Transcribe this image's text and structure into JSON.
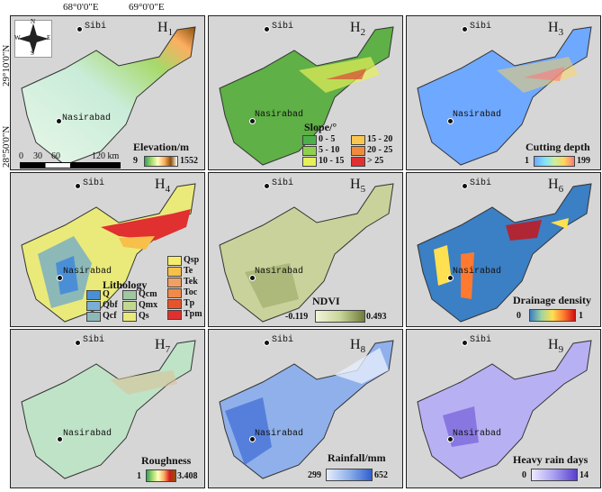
{
  "coords": {
    "top": [
      "68°0'0\"E",
      "69°0'0\"E"
    ],
    "left": [
      "29°10'0\"N",
      "28°50'0\"N"
    ]
  },
  "compass": {
    "n": "N",
    "s": "S",
    "e": "E",
    "w": "W"
  },
  "cities": {
    "sibi": "Sibi",
    "nasirabad": "Nasirabad"
  },
  "panels": [
    {
      "id": "H",
      "sub": "1"
    },
    {
      "id": "H",
      "sub": "2"
    },
    {
      "id": "H",
      "sub": "3"
    },
    {
      "id": "H",
      "sub": "4"
    },
    {
      "id": "H",
      "sub": "5"
    },
    {
      "id": "H",
      "sub": "6"
    },
    {
      "id": "H",
      "sub": "7"
    },
    {
      "id": "H",
      "sub": "8"
    },
    {
      "id": "H",
      "sub": "9"
    }
  ],
  "scale": {
    "labels": [
      "0",
      "30",
      "60",
      "120 km"
    ]
  },
  "legends": {
    "elevation": {
      "title": "Elevation/m",
      "min": "9",
      "max": "1552",
      "colors": [
        "#2ca25f",
        "#a6d96a",
        "#ffffbf",
        "#fdae61",
        "#8c510a",
        "#ffffff"
      ]
    },
    "slope": {
      "title": "Slope/°",
      "classes": [
        {
          "label": "0 - 5",
          "color": "#4daf4a"
        },
        {
          "label": "5 - 10",
          "color": "#8fd14f"
        },
        {
          "label": "10 - 15",
          "color": "#e6f05a"
        },
        {
          "label": "15 - 20",
          "color": "#f9c74f"
        },
        {
          "label": "20 - 25",
          "color": "#f08a3c"
        },
        {
          "label": "> 25",
          "color": "#e03131"
        }
      ]
    },
    "cutting": {
      "title": "Cutting depth",
      "min": "1",
      "max": "199",
      "colors": [
        "#6fa8ff",
        "#7ee0ff",
        "#c8f0a0",
        "#ffd45a",
        "#ff7a7a"
      ]
    },
    "lithology": {
      "title": "Lithology",
      "classes": [
        {
          "label": "Qsp",
          "color": "#f5ec6e"
        },
        {
          "label": "Te",
          "color": "#f6c04a"
        },
        {
          "label": "Tek",
          "color": "#f0a064"
        },
        {
          "label": "Toc",
          "color": "#f08a4a"
        },
        {
          "label": "Tp",
          "color": "#e8542a"
        },
        {
          "label": "Tpm",
          "color": "#e03030"
        },
        {
          "label": "Q",
          "color": "#4a8fd6"
        },
        {
          "label": "Qbf",
          "color": "#7aaed8"
        },
        {
          "label": "Qcf",
          "color": "#8db8b8"
        },
        {
          "label": "Qcm",
          "color": "#9fc7a0"
        },
        {
          "label": "Qmx",
          "color": "#c2d890"
        },
        {
          "label": "Qs",
          "color": "#eaea7a"
        }
      ]
    },
    "ndvi": {
      "title": "NDVI",
      "min": "-0.119",
      "max": "0.493",
      "colors": [
        "#f1f4d8",
        "#c8d59a",
        "#6e7d3a"
      ]
    },
    "drainage": {
      "title": "Drainage density",
      "min": "0",
      "max": "1",
      "colors": [
        "#3b7fc4",
        "#9fd4a0",
        "#ffe050",
        "#ff7a30",
        "#d01010"
      ]
    },
    "roughness": {
      "title": "Roughness",
      "min": "1",
      "max": "3.408",
      "colors": [
        "#2ca25f",
        "#a6d96a",
        "#ffffbf",
        "#fdae61",
        "#d7191c",
        "#8c510a"
      ]
    },
    "rainfall": {
      "title": "Rainfall/mm",
      "min": "299",
      "max": "652",
      "colors": [
        "#e6eefc",
        "#8fb0ea",
        "#2f5fd0"
      ]
    },
    "heavyrain": {
      "title": "Heavy rain days",
      "min": "0",
      "max": "14",
      "colors": [
        "#eeeaff",
        "#a79ef0",
        "#5a3ed0"
      ]
    }
  },
  "fills": {
    "p1": "#c9ecd9",
    "p2": "#5fb046",
    "p3": "#6fa8ff",
    "p4": "#c2d890",
    "p5": "#c9d29a",
    "p6": "#3b7fc4",
    "p7": "#bfe3c7",
    "p8": "#8fb0ea",
    "p9": "#b7b0f3"
  }
}
